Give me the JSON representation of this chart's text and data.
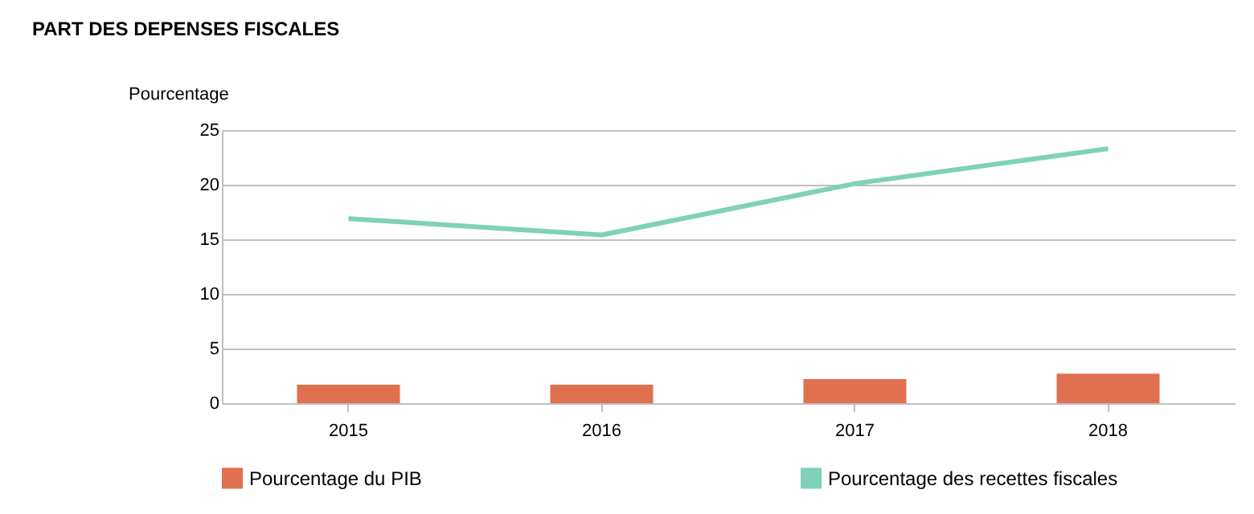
{
  "chart_data": {
    "type": "bar",
    "title": "PART DES DEPENSES FISCALES",
    "ylabel": "Pourcentage",
    "categories": [
      "2015",
      "2016",
      "2017",
      "2018"
    ],
    "series": [
      {
        "name": "Pourcentage du PIB",
        "color": "#e07050",
        "values": [
          1.7,
          1.7,
          2.2,
          2.7
        ]
      },
      {
        "name": "Pourcentage des recettes fiscales",
        "type": "line",
        "color": "#7fd1b9",
        "values": [
          16.9,
          15.4,
          20.1,
          23.3
        ]
      }
    ],
    "ylim": [
      0,
      25
    ],
    "yticks": [
      0,
      5,
      10,
      15,
      20,
      25
    ],
    "grid": "y",
    "legend": "bottom"
  }
}
